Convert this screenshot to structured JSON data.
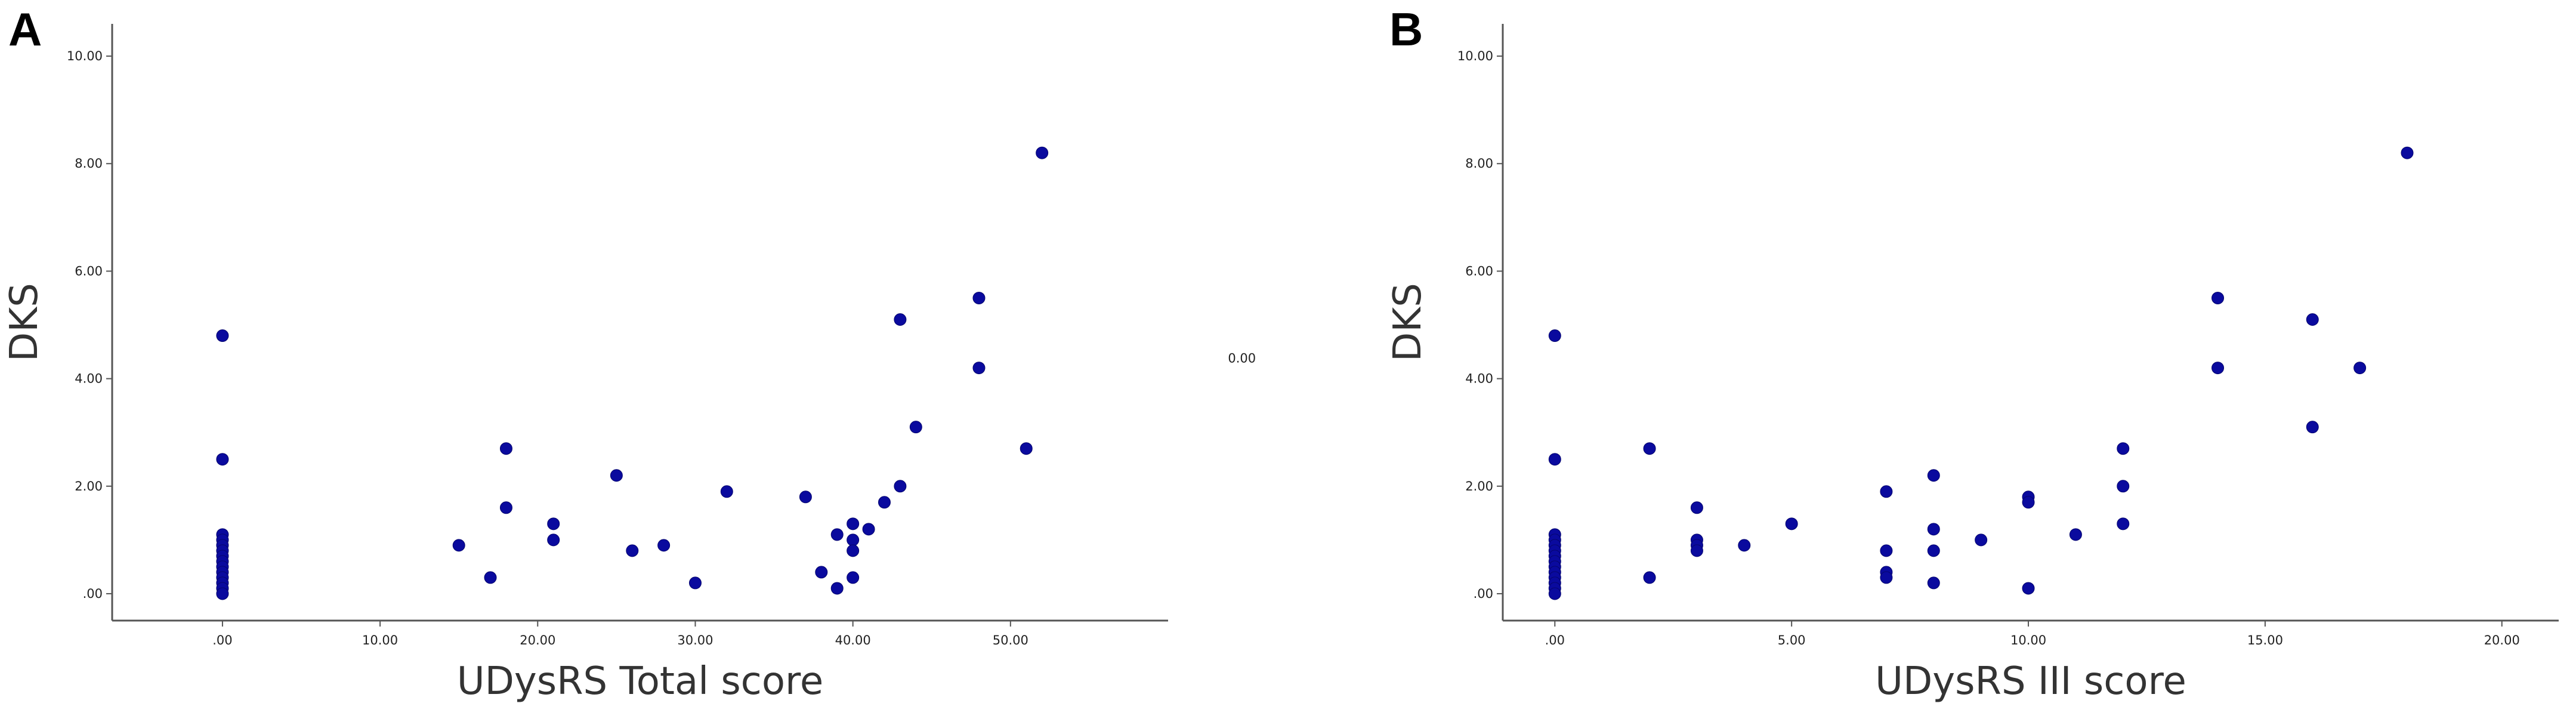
{
  "chart_data": [
    {
      "panel_label": "A",
      "type": "scatter",
      "xlabel": "UDysRS Total score",
      "ylabel": "DKS",
      "xlim": [
        -7,
        60
      ],
      "ylim": [
        -0.5,
        10.6
      ],
      "x_ticks": [
        0,
        10,
        20,
        30,
        40,
        50
      ],
      "x_tick_labels": [
        ".00",
        "10.00",
        "20.00",
        "30.00",
        "40.00",
        "50.00"
      ],
      "y_ticks": [
        0,
        2,
        4,
        6,
        8,
        10
      ],
      "y_tick_labels": [
        ".00",
        "2.00",
        "4.00",
        "6.00",
        "8.00",
        "10.00"
      ],
      "annotation": {
        "text": "0.00",
        "x": 63.8,
        "y": 4.3
      },
      "points": [
        {
          "x": 0,
          "y": 4.8
        },
        {
          "x": 0,
          "y": 2.5
        },
        {
          "x": 0,
          "y": 1.1
        },
        {
          "x": 0,
          "y": 1.0
        },
        {
          "x": 0,
          "y": 0.9
        },
        {
          "x": 0,
          "y": 0.8
        },
        {
          "x": 0,
          "y": 0.7
        },
        {
          "x": 0,
          "y": 0.6
        },
        {
          "x": 0,
          "y": 0.5
        },
        {
          "x": 0,
          "y": 0.4
        },
        {
          "x": 0,
          "y": 0.3
        },
        {
          "x": 0,
          "y": 0.2
        },
        {
          "x": 0,
          "y": 0.1
        },
        {
          "x": 0,
          "y": 0.0
        },
        {
          "x": 15,
          "y": 0.9
        },
        {
          "x": 17,
          "y": 0.3
        },
        {
          "x": 18,
          "y": 2.7
        },
        {
          "x": 18,
          "y": 1.6
        },
        {
          "x": 21,
          "y": 1.3
        },
        {
          "x": 21,
          "y": 1.0
        },
        {
          "x": 25,
          "y": 2.2
        },
        {
          "x": 26,
          "y": 0.8
        },
        {
          "x": 28,
          "y": 0.9
        },
        {
          "x": 30,
          "y": 0.2
        },
        {
          "x": 32,
          "y": 1.9
        },
        {
          "x": 37,
          "y": 1.8
        },
        {
          "x": 38,
          "y": 0.4
        },
        {
          "x": 39,
          "y": 1.1
        },
        {
          "x": 39,
          "y": 0.1
        },
        {
          "x": 40,
          "y": 1.3
        },
        {
          "x": 40,
          "y": 1.0
        },
        {
          "x": 40,
          "y": 0.8
        },
        {
          "x": 40,
          "y": 0.3
        },
        {
          "x": 41,
          "y": 1.2
        },
        {
          "x": 42,
          "y": 1.7
        },
        {
          "x": 43,
          "y": 2.0
        },
        {
          "x": 43,
          "y": 5.1
        },
        {
          "x": 44,
          "y": 3.1
        },
        {
          "x": 48,
          "y": 5.5
        },
        {
          "x": 48,
          "y": 4.2
        },
        {
          "x": 51,
          "y": 2.7
        },
        {
          "x": 52,
          "y": 8.2
        }
      ]
    },
    {
      "panel_label": "B",
      "type": "scatter",
      "xlabel": "UDysRS III score",
      "ylabel": "DKS",
      "xlim": [
        -1.1,
        21.2
      ],
      "ylim": [
        -0.5,
        10.6
      ],
      "x_ticks": [
        0,
        5,
        10,
        15,
        20
      ],
      "x_tick_labels": [
        ".00",
        "5.00",
        "10.00",
        "15.00",
        "20.00"
      ],
      "y_ticks": [
        0,
        2,
        4,
        6,
        8,
        10
      ],
      "y_tick_labels": [
        ".00",
        "2.00",
        "4.00",
        "6.00",
        "8.00",
        "10.00"
      ],
      "points": [
        {
          "x": 0,
          "y": 4.8
        },
        {
          "x": 0,
          "y": 2.5
        },
        {
          "x": 0,
          "y": 1.1
        },
        {
          "x": 0,
          "y": 1.0
        },
        {
          "x": 0,
          "y": 0.9
        },
        {
          "x": 0,
          "y": 0.8
        },
        {
          "x": 0,
          "y": 0.7
        },
        {
          "x": 0,
          "y": 0.6
        },
        {
          "x": 0,
          "y": 0.5
        },
        {
          "x": 0,
          "y": 0.4
        },
        {
          "x": 0,
          "y": 0.3
        },
        {
          "x": 0,
          "y": 0.2
        },
        {
          "x": 0,
          "y": 0.1
        },
        {
          "x": 0,
          "y": 0.0
        },
        {
          "x": 2,
          "y": 2.7
        },
        {
          "x": 2,
          "y": 0.3
        },
        {
          "x": 3,
          "y": 1.6
        },
        {
          "x": 3,
          "y": 1.0
        },
        {
          "x": 3,
          "y": 0.9
        },
        {
          "x": 3,
          "y": 0.8
        },
        {
          "x": 4,
          "y": 0.9
        },
        {
          "x": 5,
          "y": 1.3
        },
        {
          "x": 7,
          "y": 1.9
        },
        {
          "x": 7,
          "y": 0.8
        },
        {
          "x": 7,
          "y": 0.4
        },
        {
          "x": 7,
          "y": 0.3
        },
        {
          "x": 8,
          "y": 2.2
        },
        {
          "x": 8,
          "y": 1.2
        },
        {
          "x": 8,
          "y": 0.8
        },
        {
          "x": 8,
          "y": 0.2
        },
        {
          "x": 9,
          "y": 1.0
        },
        {
          "x": 10,
          "y": 1.8
        },
        {
          "x": 10,
          "y": 1.7
        },
        {
          "x": 10,
          "y": 0.1
        },
        {
          "x": 11,
          "y": 1.1
        },
        {
          "x": 12,
          "y": 2.7
        },
        {
          "x": 12,
          "y": 2.0
        },
        {
          "x": 12,
          "y": 1.3
        },
        {
          "x": 14,
          "y": 5.5
        },
        {
          "x": 14,
          "y": 4.2
        },
        {
          "x": 16,
          "y": 5.1
        },
        {
          "x": 16,
          "y": 3.1
        },
        {
          "x": 17,
          "y": 4.2
        },
        {
          "x": 18,
          "y": 8.2
        }
      ]
    }
  ]
}
